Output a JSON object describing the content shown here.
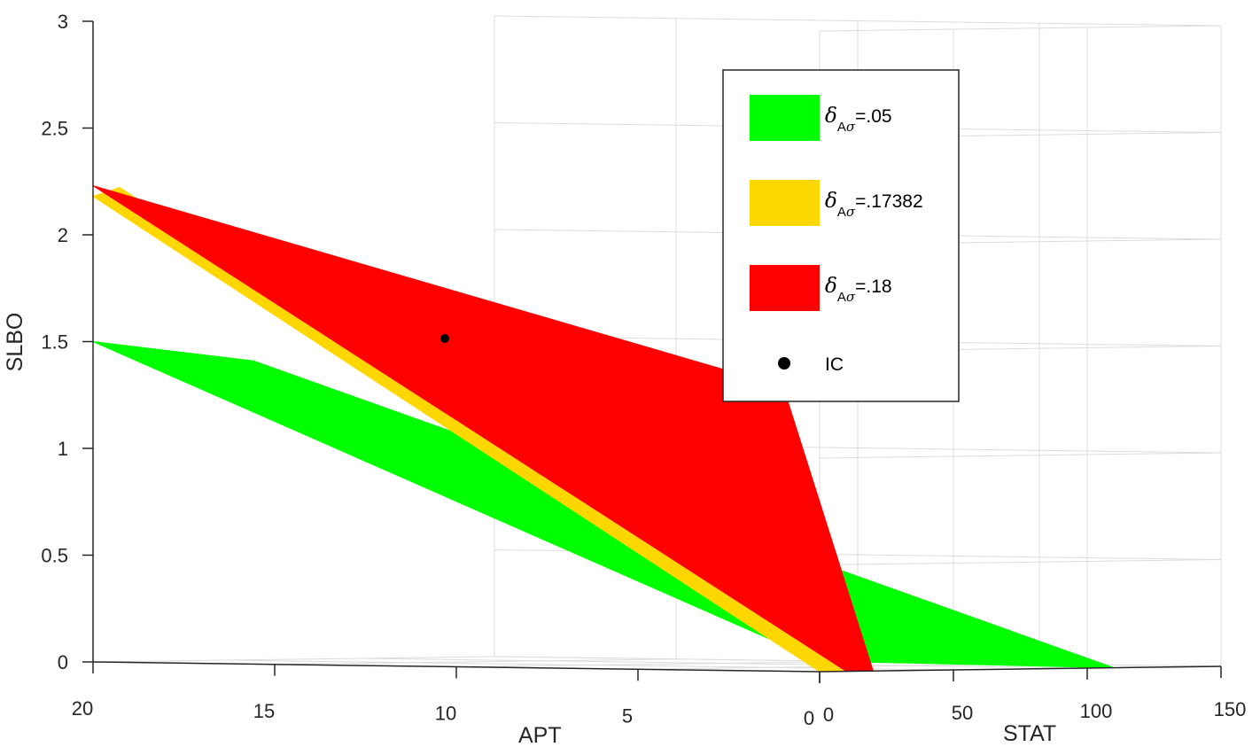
{
  "chart_data": {
    "type": "surface3d",
    "xlabel": "APT",
    "ylabel": "STAT",
    "zlabel": "SLBO",
    "x_ticks": [
      "20",
      "15",
      "10",
      "5",
      "0"
    ],
    "y_ticks": [
      "0",
      "50",
      "100",
      "150"
    ],
    "z_ticks": [
      "0",
      "0.5",
      "1",
      "1.5",
      "2",
      "2.5",
      "3"
    ],
    "xlim": [
      0,
      20
    ],
    "ylim": [
      0,
      150
    ],
    "zlim": [
      0,
      3
    ],
    "grid": true,
    "legend_position": "top-right",
    "series": [
      {
        "label_symbol": "δ",
        "label_subscript": "A",
        "label_subscript_symbol": "σ",
        "label_value": "=.05",
        "color": "#00ff00",
        "corners": [
          [
            20,
            0,
            1.5
          ],
          [
            0,
            0,
            0.05
          ],
          [
            0,
            110,
            0
          ],
          [
            20,
            60,
            1.4
          ]
        ]
      },
      {
        "label_symbol": "δ",
        "label_subscript": "A",
        "label_subscript_symbol": "σ",
        "label_value": "=.17382",
        "color": "#ffd700",
        "corners": [
          [
            20,
            0,
            2.18
          ],
          [
            0,
            0,
            0.0
          ],
          [
            0,
            10,
            0.0
          ],
          [
            20,
            10,
            2.22
          ]
        ]
      },
      {
        "label_symbol": "δ",
        "label_subscript": "A",
        "label_subscript_symbol": "σ",
        "label_value": "=.18",
        "color": "#ff0000",
        "corners": [
          [
            20,
            0,
            2.23
          ],
          [
            0,
            10,
            0.0
          ],
          [
            0,
            20,
            0.0
          ],
          [
            8,
            95,
            1.3
          ]
        ]
      }
    ],
    "points": [
      {
        "label": "IC",
        "color": "#000000",
        "x": 14,
        "y": 50,
        "z": 1.52
      }
    ]
  }
}
